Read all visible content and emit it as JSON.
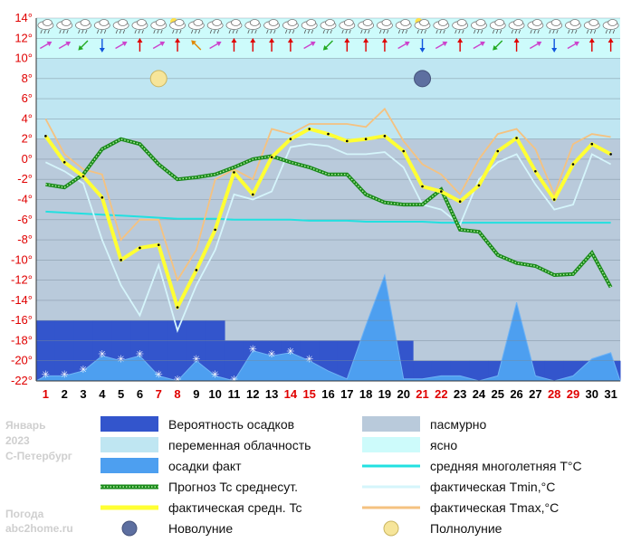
{
  "info": {
    "month": "Январь",
    "year": "2023",
    "city": "С-Петербург",
    "site_label": "Погода",
    "site": "abc2home.ru"
  },
  "colors": {
    "precip_prob": "#3355cc",
    "variable": "#bfe6f2",
    "precip_fact": "#4d9ff0",
    "forecast": "#1a8a1a",
    "actual_mean": "#ffff33",
    "overcast": "#b9cadb",
    "clear": "#cdfbfb",
    "normal": "#22e0e0",
    "tmin": "#d5f5fb",
    "tmax": "#f5c280",
    "plot_bg": "#b9cadb",
    "grid": "#7a8a99",
    "weekday": "#000000",
    "weekend": "#e00000"
  },
  "legend": [
    {
      "label": "Вероятность осадков",
      "key": "precip_prob",
      "kind": "box"
    },
    {
      "label": "пасмурно",
      "key": "overcast",
      "kind": "box"
    },
    {
      "label": "переменная облачность",
      "key": "variable",
      "kind": "box"
    },
    {
      "label": "ясно",
      "key": "clear",
      "kind": "box"
    },
    {
      "label": "осадки факт",
      "key": "precip_fact",
      "kind": "box"
    },
    {
      "label": "средняя многолетняя T°C",
      "key": "normal",
      "kind": "line"
    },
    {
      "label": "Прогноз Tc среднесут.",
      "key": "forecast",
      "kind": "dotted"
    },
    {
      "label": "фактическая Tmin,°C",
      "key": "tmin",
      "kind": "line"
    },
    {
      "label": "фактическая средн. Tc",
      "key": "actual_mean",
      "kind": "thick"
    },
    {
      "label": "фактическая Tmax,°C",
      "key": "tmax",
      "kind": "line"
    },
    {
      "label": "Новолуние",
      "key": "new_moon",
      "kind": "newmoon"
    },
    {
      "label": "Полнолуние",
      "key": "full_moon",
      "kind": "fullmoon"
    }
  ],
  "chart_data": {
    "type": "line",
    "x": [
      1,
      2,
      3,
      4,
      5,
      6,
      7,
      8,
      9,
      10,
      11,
      12,
      13,
      14,
      15,
      16,
      17,
      18,
      19,
      20,
      21,
      22,
      23,
      24,
      25,
      26,
      27,
      28,
      29,
      30,
      31
    ],
    "x_tick_labels": [
      "1",
      "2",
      "3",
      "4",
      "5",
      "6",
      "7",
      "8",
      "9",
      "10",
      "11",
      "12",
      "13",
      "14",
      "15",
      "16",
      "17",
      "18",
      "19",
      "20",
      "21",
      "22",
      "23",
      "24",
      "25",
      "26",
      "27",
      "28",
      "29",
      "30",
      "31"
    ],
    "weekend_days": [
      1,
      7,
      8,
      14,
      15,
      21,
      22,
      28,
      29
    ],
    "y_tick_labels": [
      "14°",
      "12°",
      "10°",
      "8°",
      "6°",
      "4°",
      "2°",
      "0°",
      "-2°",
      "-4°",
      "-6°",
      "-8°",
      "-10°",
      "-12°",
      "-14°",
      "-16°",
      "-18°",
      "-20°",
      "-22°"
    ],
    "ylim": [
      -22,
      14
    ],
    "y_ticks": [
      14,
      12,
      10,
      8,
      6,
      4,
      2,
      0,
      -2,
      -4,
      -6,
      -8,
      -10,
      -12,
      -14,
      -16,
      -18,
      -20,
      -22
    ],
    "grid": true,
    "clear_band_above": 10,
    "full_moon_day": 7,
    "new_moon_day": 21,
    "series": [
      {
        "name": "фактическая Tmax,°C",
        "key": "tmax",
        "values": [
          4,
          0.5,
          -1,
          -1.5,
          -8,
          -6,
          -6,
          -12,
          -9,
          -2,
          -1,
          -2,
          3,
          2.5,
          3.5,
          3.5,
          3.5,
          3.2,
          5,
          1.8,
          -0.5,
          -1.5,
          -3.5,
          0,
          2.5,
          3,
          1,
          -3.5,
          1.5,
          2.5,
          2.2
        ]
      },
      {
        "name": "фактическая Tmin,°C",
        "key": "tmin",
        "values": [
          -0.3,
          -1.2,
          -2.4,
          -8,
          -12.5,
          -15.5,
          -10.5,
          -17,
          -12.5,
          -9,
          -3.5,
          -4,
          -3.2,
          1.2,
          1.5,
          1.3,
          0.5,
          0.5,
          0.7,
          -0.8,
          -4.5,
          -5,
          -6.5,
          -2,
          -0.3,
          0.5,
          -2.5,
          -5,
          -4.5,
          0.5,
          -0.5
        ]
      },
      {
        "name": "фактическая средн. Tc",
        "key": "actual_mean",
        "values": [
          2.3,
          -0.3,
          -1.7,
          -3.8,
          -10,
          -8.8,
          -8.5,
          -14.7,
          -11,
          -7,
          -1.3,
          -3.5,
          0.2,
          2,
          3,
          2.5,
          1.8,
          2,
          2.3,
          0.8,
          -2.7,
          -3.2,
          -4.2,
          -2.6,
          0.8,
          2.1,
          -1.2,
          -4,
          -0.5,
          1.5,
          0.5
        ]
      },
      {
        "name": "Прогноз Tc среднесут.",
        "key": "forecast",
        "values": [
          -2.5,
          -2.8,
          -1.5,
          1,
          2,
          1.5,
          -0.5,
          -2,
          -1.8,
          -1.5,
          -0.8,
          0,
          0.3,
          -0.3,
          -0.8,
          -1.5,
          -1.5,
          -3.5,
          -4.3,
          -4.5,
          -4.5,
          -3,
          -7,
          -7.2,
          -9.5,
          -10.3,
          -10.6,
          -11.5,
          -11.4,
          -9.3,
          -12.7
        ]
      },
      {
        "name": "средняя многолетняя T°C",
        "key": "normal",
        "values": [
          -5.2,
          -5.3,
          -5.4,
          -5.5,
          -5.6,
          -5.7,
          -5.8,
          -5.9,
          -5.9,
          -5.9,
          -6,
          -6,
          -6,
          -6,
          -6.1,
          -6.1,
          -6.1,
          -6.2,
          -6.2,
          -6.2,
          -6.2,
          -6.3,
          -6.3,
          -6.3,
          -6.3,
          -6.3,
          -6.3,
          -6.3,
          -6.3,
          -6.3,
          -6.3
        ]
      },
      {
        "name": "Вероятность осадков",
        "key": "precip_prob",
        "values": [
          -16,
          -16,
          -16,
          -16,
          -16,
          -16,
          -16,
          -16,
          -16,
          -16,
          -18,
          -18,
          -18,
          -18,
          -18,
          -18,
          -18,
          -18,
          -18,
          -18,
          -20,
          -20,
          -20,
          -20,
          -20,
          -20,
          -20,
          -20,
          -20,
          -20,
          -20
        ]
      },
      {
        "name": "осадки факт",
        "key": "precip_fact",
        "values": [
          -21.5,
          -21.5,
          -21,
          -19.5,
          -20,
          -19.5,
          -21.5,
          -22,
          -20,
          -21.5,
          -22,
          -19,
          -19.5,
          -19.2,
          -20,
          -21,
          -21.8,
          -16.5,
          -11.5,
          -21.8,
          -21.8,
          -21.5,
          -21.5,
          -22,
          -21.5,
          -14.2,
          -21.5,
          -22,
          -21.5,
          -19.8,
          -19.2
        ]
      }
    ],
    "snow_days": [
      1,
      2,
      3,
      4,
      5,
      6,
      7,
      8,
      9,
      10,
      11,
      12,
      13,
      14,
      15
    ],
    "cloud_types": [
      "rain",
      "rain",
      "rain",
      "rain",
      "rain",
      "rain",
      "rain",
      "sun",
      "rain",
      "rain",
      "rain",
      "rain",
      "rain",
      "rain",
      "rain",
      "rain",
      "rain",
      "rain",
      "rain",
      "rain",
      "sun",
      "rain",
      "rain",
      "rain",
      "rain",
      "rain",
      "rain",
      "rain",
      "rain",
      "rain",
      "rain"
    ],
    "wind_colors": [
      "#cc44cc",
      "#cc44cc",
      "#22aa22",
      "#1155dd",
      "#cc44cc",
      "#e00000",
      "#cc44cc",
      "#e00000",
      "#e08800",
      "#cc44cc",
      "#e00000",
      "#e00000",
      "#e00000",
      "#e00000",
      "#cc44cc",
      "#22aa22",
      "#e00000",
      "#e00000",
      "#e00000",
      "#cc44cc",
      "#1155dd",
      "#cc44cc",
      "#e00000",
      "#cc44cc",
      "#22aa22",
      "#e00000",
      "#cc44cc",
      "#1155dd",
      "#cc44cc",
      "#e00000",
      "#e00000"
    ],
    "wind_angles": [
      60,
      60,
      225,
      180,
      60,
      0,
      60,
      0,
      315,
      60,
      0,
      0,
      0,
      0,
      60,
      225,
      0,
      0,
      0,
      60,
      180,
      60,
      0,
      60,
      225,
      0,
      60,
      180,
      60,
      0,
      0
    ]
  }
}
